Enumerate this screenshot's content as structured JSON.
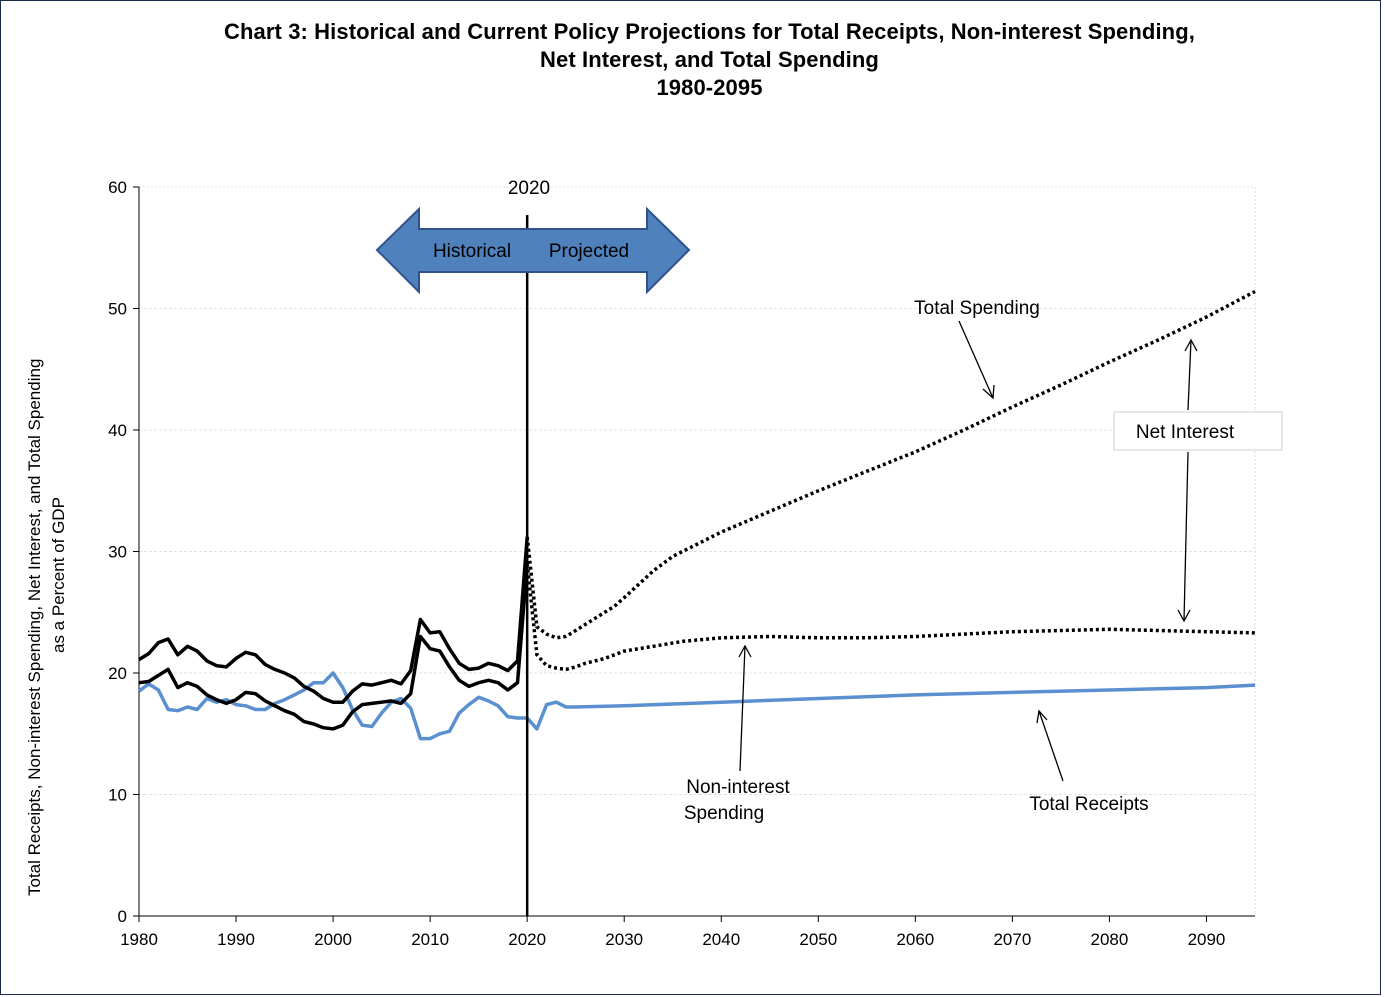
{
  "title": {
    "line1": "Chart 3:  Historical and Current Policy Projections for Total Receipts, Non-interest Spending,",
    "line2": "Net Interest, and Total Spending",
    "line3": "1980-2095"
  },
  "y_axis_label": {
    "line1": "Total Receipts, Non-interest Spending, Net Interest, and Total Spending",
    "line2": "as a Percent of GDP"
  },
  "divider": {
    "label": "2020",
    "historical_label": "Historical",
    "projected_label": "Projected"
  },
  "annotations": {
    "total_spending": "Total Spending",
    "net_interest": "Net Interest",
    "non_interest_line1": "Non-interest",
    "non_interest_line2": "Spending",
    "total_receipts": "Total Receipts"
  },
  "colors": {
    "receipts": "#5a8fd0",
    "spending": "#000000",
    "arrow_fill": "#4f81bd",
    "arrow_stroke": "#2f528f",
    "grid": "#d9ead3"
  },
  "chart_data": {
    "type": "line",
    "xlim": [
      1980,
      2095
    ],
    "ylim": [
      0,
      60
    ],
    "x_ticks": [
      1980,
      1990,
      2000,
      2010,
      2020,
      2030,
      2040,
      2050,
      2060,
      2070,
      2080,
      2090
    ],
    "y_ticks": [
      0,
      10,
      20,
      30,
      40,
      50,
      60
    ],
    "grid": "horizontal",
    "series": [
      {
        "name": "Total Receipts",
        "style": "solid",
        "points": [
          [
            1980,
            18.5
          ],
          [
            1981,
            19.1
          ],
          [
            1982,
            18.6
          ],
          [
            1983,
            17.0
          ],
          [
            1984,
            16.9
          ],
          [
            1985,
            17.2
          ],
          [
            1986,
            17.0
          ],
          [
            1987,
            17.9
          ],
          [
            1988,
            17.6
          ],
          [
            1989,
            17.8
          ],
          [
            1990,
            17.4
          ],
          [
            1991,
            17.3
          ],
          [
            1992,
            17.0
          ],
          [
            1993,
            17.0
          ],
          [
            1994,
            17.5
          ],
          [
            1995,
            17.8
          ],
          [
            1996,
            18.2
          ],
          [
            1997,
            18.6
          ],
          [
            1998,
            19.2
          ],
          [
            1999,
            19.2
          ],
          [
            2000,
            20.0
          ],
          [
            2001,
            18.8
          ],
          [
            2002,
            17.0
          ],
          [
            2003,
            15.7
          ],
          [
            2004,
            15.6
          ],
          [
            2005,
            16.7
          ],
          [
            2006,
            17.6
          ],
          [
            2007,
            17.9
          ],
          [
            2008,
            17.1
          ],
          [
            2009,
            14.6
          ],
          [
            2010,
            14.6
          ],
          [
            2011,
            15.0
          ],
          [
            2012,
            15.2
          ],
          [
            2013,
            16.7
          ],
          [
            2014,
            17.4
          ],
          [
            2015,
            18.0
          ],
          [
            2016,
            17.7
          ],
          [
            2017,
            17.3
          ],
          [
            2018,
            16.4
          ],
          [
            2019,
            16.3
          ],
          [
            2020,
            16.3
          ],
          [
            2021,
            15.4
          ],
          [
            2022,
            17.4
          ],
          [
            2023,
            17.6
          ],
          [
            2024,
            17.2
          ],
          [
            2025,
            17.2
          ],
          [
            2030,
            17.3
          ],
          [
            2040,
            17.6
          ],
          [
            2050,
            17.9
          ],
          [
            2060,
            18.2
          ],
          [
            2070,
            18.4
          ],
          [
            2080,
            18.6
          ],
          [
            2090,
            18.8
          ],
          [
            2095,
            19.0
          ]
        ]
      },
      {
        "name": "Non-interest Spending",
        "style": "solid-dotted",
        "historical_points": [
          [
            1980,
            19.2
          ],
          [
            1981,
            19.3
          ],
          [
            1982,
            19.8
          ],
          [
            1983,
            20.3
          ],
          [
            1984,
            18.8
          ],
          [
            1985,
            19.2
          ],
          [
            1986,
            18.9
          ],
          [
            1987,
            18.2
          ],
          [
            1988,
            17.8
          ],
          [
            1989,
            17.5
          ],
          [
            1990,
            17.8
          ],
          [
            1991,
            18.4
          ],
          [
            1992,
            18.3
          ],
          [
            1993,
            17.7
          ],
          [
            1994,
            17.3
          ],
          [
            1995,
            16.9
          ],
          [
            1996,
            16.6
          ],
          [
            1997,
            16.0
          ],
          [
            1998,
            15.8
          ],
          [
            1999,
            15.5
          ],
          [
            2000,
            15.4
          ],
          [
            2001,
            15.7
          ],
          [
            2002,
            16.8
          ],
          [
            2003,
            17.4
          ],
          [
            2004,
            17.5
          ],
          [
            2005,
            17.6
          ],
          [
            2006,
            17.7
          ],
          [
            2007,
            17.5
          ],
          [
            2008,
            18.3
          ],
          [
            2009,
            23.0
          ],
          [
            2010,
            22.0
          ],
          [
            2011,
            21.8
          ],
          [
            2012,
            20.5
          ],
          [
            2013,
            19.4
          ],
          [
            2014,
            18.9
          ],
          [
            2015,
            19.2
          ],
          [
            2016,
            19.4
          ],
          [
            2017,
            19.2
          ],
          [
            2018,
            18.6
          ],
          [
            2019,
            19.2
          ],
          [
            2020,
            29.0
          ]
        ],
        "projected_points": [
          [
            2020,
            29.0
          ],
          [
            2021,
            21.5
          ],
          [
            2022,
            20.6
          ],
          [
            2023,
            20.4
          ],
          [
            2024,
            20.3
          ],
          [
            2025,
            20.5
          ],
          [
            2026,
            20.8
          ],
          [
            2027,
            21.0
          ],
          [
            2028,
            21.2
          ],
          [
            2029,
            21.5
          ],
          [
            2030,
            21.8
          ],
          [
            2033,
            22.2
          ],
          [
            2036,
            22.6
          ],
          [
            2040,
            22.9
          ],
          [
            2045,
            23.0
          ],
          [
            2050,
            22.9
          ],
          [
            2055,
            22.9
          ],
          [
            2060,
            23.0
          ],
          [
            2065,
            23.2
          ],
          [
            2070,
            23.4
          ],
          [
            2075,
            23.5
          ],
          [
            2080,
            23.6
          ],
          [
            2085,
            23.5
          ],
          [
            2090,
            23.4
          ],
          [
            2095,
            23.3
          ]
        ]
      },
      {
        "name": "Total Spending",
        "style": "solid-dotted",
        "historical_points": [
          [
            1980,
            21.1
          ],
          [
            1981,
            21.6
          ],
          [
            1982,
            22.5
          ],
          [
            1983,
            22.8
          ],
          [
            1984,
            21.5
          ],
          [
            1985,
            22.2
          ],
          [
            1986,
            21.8
          ],
          [
            1987,
            21.0
          ],
          [
            1988,
            20.6
          ],
          [
            1989,
            20.5
          ],
          [
            1990,
            21.2
          ],
          [
            1991,
            21.7
          ],
          [
            1992,
            21.5
          ],
          [
            1993,
            20.7
          ],
          [
            1994,
            20.3
          ],
          [
            1995,
            20.0
          ],
          [
            1996,
            19.6
          ],
          [
            1997,
            18.9
          ],
          [
            1998,
            18.5
          ],
          [
            1999,
            17.9
          ],
          [
            2000,
            17.6
          ],
          [
            2001,
            17.6
          ],
          [
            2002,
            18.5
          ],
          [
            2003,
            19.1
          ],
          [
            2004,
            19.0
          ],
          [
            2005,
            19.2
          ],
          [
            2006,
            19.4
          ],
          [
            2007,
            19.1
          ],
          [
            2008,
            20.2
          ],
          [
            2009,
            24.4
          ],
          [
            2010,
            23.3
          ],
          [
            2011,
            23.4
          ],
          [
            2012,
            22.0
          ],
          [
            2013,
            20.8
          ],
          [
            2014,
            20.3
          ],
          [
            2015,
            20.4
          ],
          [
            2016,
            20.8
          ],
          [
            2017,
            20.6
          ],
          [
            2018,
            20.2
          ],
          [
            2019,
            21.0
          ],
          [
            2020,
            31.2
          ]
        ],
        "projected_points": [
          [
            2020,
            31.2
          ],
          [
            2021,
            23.8
          ],
          [
            2022,
            23.2
          ],
          [
            2023,
            22.9
          ],
          [
            2024,
            23.0
          ],
          [
            2025,
            23.5
          ],
          [
            2026,
            24.0
          ],
          [
            2027,
            24.5
          ],
          [
            2028,
            25.0
          ],
          [
            2029,
            25.5
          ],
          [
            2030,
            26.2
          ],
          [
            2033,
            28.4
          ],
          [
            2035,
            29.6
          ],
          [
            2040,
            31.6
          ],
          [
            2045,
            33.3
          ],
          [
            2050,
            35.0
          ],
          [
            2055,
            36.6
          ],
          [
            2060,
            38.2
          ],
          [
            2065,
            40.0
          ],
          [
            2070,
            41.9
          ],
          [
            2075,
            43.7
          ],
          [
            2080,
            45.6
          ],
          [
            2085,
            47.4
          ],
          [
            2090,
            49.3
          ],
          [
            2095,
            51.4
          ]
        ]
      }
    ]
  }
}
